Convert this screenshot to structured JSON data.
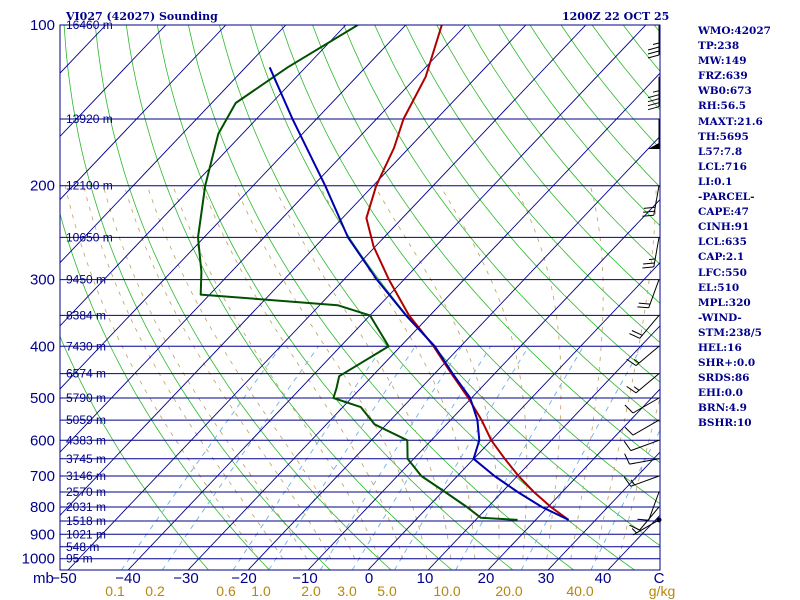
{
  "header": {
    "station": "VI027 (42027) Sounding",
    "time": "1200Z 22 OCT 25"
  },
  "chart_data": {
    "type": "line",
    "title": "VI027 (42027) Sounding",
    "subtitle": "1200Z 22 OCT 25",
    "xlabel": "",
    "ylabel": "mb",
    "x_unit": "C",
    "mixing_ratio_unit": "g/kg",
    "pressure_ticks": [
      100,
      200,
      300,
      400,
      500,
      600,
      700,
      800,
      900,
      1000
    ],
    "temperature_ticks": [
      -50,
      -40,
      -30,
      -20,
      -10,
      0,
      10,
      20,
      30,
      40
    ],
    "mixing_ratio_ticks": [
      "0.1",
      "0.2",
      "0.6",
      "1.0",
      "2.0",
      "3.0",
      "5.0",
      "10.0",
      "20.0",
      "40.0"
    ],
    "height_labels": [
      {
        "p": 100,
        "h": "16460 m"
      },
      {
        "p": 150,
        "h": "13920 m"
      },
      {
        "p": 200,
        "h": "12100 m"
      },
      {
        "p": 250,
        "h": "10650 m"
      },
      {
        "p": 300,
        "h": "9450 m"
      },
      {
        "p": 350,
        "h": "8384 m"
      },
      {
        "p": 400,
        "h": "7430 m"
      },
      {
        "p": 450,
        "h": "6574 m"
      },
      {
        "p": 500,
        "h": "5790 m"
      },
      {
        "p": 550,
        "h": "5059 m"
      },
      {
        "p": 600,
        "h": "4383 m"
      },
      {
        "p": 650,
        "h": "3745 m"
      },
      {
        "p": 700,
        "h": "3146 m"
      },
      {
        "p": 750,
        "h": "2570 m"
      },
      {
        "p": 800,
        "h": "2031 m"
      },
      {
        "p": 850,
        "h": "1518 m"
      },
      {
        "p": 900,
        "h": "1021 m"
      },
      {
        "p": 950,
        "h": "548 m"
      },
      {
        "p": 1000,
        "h": "95 m"
      }
    ],
    "series": [
      {
        "name": "Temperature",
        "color": "#b00000",
        "points": [
          [
            846,
            25.5
          ],
          [
            800,
            20.5
          ],
          [
            750,
            15.3
          ],
          [
            700,
            10.2
          ],
          [
            650,
            5.2
          ],
          [
            600,
            0.0
          ],
          [
            550,
            -4.8
          ],
          [
            500,
            -10.5
          ],
          [
            450,
            -17.2
          ],
          [
            400,
            -24.5
          ],
          [
            350,
            -33.5
          ],
          [
            300,
            -42.5
          ],
          [
            260,
            -50.3
          ],
          [
            230,
            -56.0
          ],
          [
            200,
            -59.5
          ],
          [
            170,
            -62.5
          ],
          [
            150,
            -65.5
          ],
          [
            125,
            -68.5
          ],
          [
            100,
            -74.0
          ]
        ]
      },
      {
        "name": "Dewpoint",
        "color": "#005000",
        "points": [
          [
            846,
            17.0
          ],
          [
            838,
            10.5
          ],
          [
            800,
            6.5
          ],
          [
            750,
            0.5
          ],
          [
            700,
            -6.0
          ],
          [
            650,
            -11.0
          ],
          [
            600,
            -14.0
          ],
          [
            560,
            -22.0
          ],
          [
            520,
            -27.0
          ],
          [
            500,
            -33.0
          ],
          [
            480,
            -34.0
          ],
          [
            455,
            -35.5
          ],
          [
            400,
            -32.0
          ],
          [
            350,
            -40.0
          ],
          [
            335,
            -47.0
          ],
          [
            320,
            -71.5
          ],
          [
            290,
            -75.0
          ],
          [
            250,
            -81.0
          ],
          [
            200,
            -88.0
          ],
          [
            160,
            -94.0
          ],
          [
            140,
            -96.0
          ],
          [
            120,
            -93.0
          ],
          [
            100,
            -88.0
          ]
        ]
      },
      {
        "name": "Parcel",
        "color": "#0000b0",
        "points": [
          [
            846,
            25.5
          ],
          [
            800,
            19.0
          ],
          [
            750,
            12.6
          ],
          [
            700,
            6.2
          ],
          [
            650,
            0.0
          ],
          [
            600,
            -2.0
          ],
          [
            550,
            -5.5
          ],
          [
            500,
            -10.2
          ],
          [
            450,
            -17.0
          ],
          [
            400,
            -24.3
          ],
          [
            350,
            -34.0
          ],
          [
            300,
            -44.5
          ],
          [
            250,
            -56.0
          ],
          [
            200,
            -68.0
          ],
          [
            150,
            -84.0
          ],
          [
            120,
            -96.0
          ]
        ]
      }
    ],
    "winds": [
      {
        "p": 846,
        "dir": 240,
        "spd": 5
      },
      {
        "p": 800,
        "dir": 220,
        "spd": 10
      },
      {
        "p": 750,
        "dir": 200,
        "spd": 10
      },
      {
        "p": 700,
        "dir": 250,
        "spd": 15
      },
      {
        "p": 650,
        "dir": 260,
        "spd": 10
      },
      {
        "p": 600,
        "dir": 250,
        "spd": 10
      },
      {
        "p": 550,
        "dir": 240,
        "spd": 10
      },
      {
        "p": 500,
        "dir": 240,
        "spd": 10
      },
      {
        "p": 450,
        "dir": 230,
        "spd": 15
      },
      {
        "p": 400,
        "dir": 230,
        "spd": 15
      },
      {
        "p": 350,
        "dir": 220,
        "spd": 20
      },
      {
        "p": 300,
        "dir": 200,
        "spd": 20
      },
      {
        "p": 250,
        "dir": 190,
        "spd": 25
      },
      {
        "p": 200,
        "dir": 190,
        "spd": 30
      },
      {
        "p": 150,
        "dir": 180,
        "spd": 50
      },
      {
        "p": 125,
        "dir": 180,
        "spd": 45
      },
      {
        "p": 100,
        "dir": 180,
        "spd": 35
      }
    ]
  },
  "stats": [
    "WMO:42027",
    "TP:238",
    "MW:149",
    "FRZ:639",
    "WB0:673",
    "RH:56.5",
    "MAXT:21.6",
    "TH:5695",
    "L57:7.8",
    "LCL:716",
    "LI:0.1",
    "-PARCEL-",
    "CAPE:47",
    "CINH:91",
    "LCL:635",
    "CAP:2.1",
    "LFC:550",
    "EL:510",
    "MPL:320",
    "-WIND-",
    "STM:238/5",
    "HEL:16",
    "SHR+:0.0",
    "SRDS:86",
    "EHI:0.0",
    "BRN:4.9",
    "BSHR:10"
  ]
}
